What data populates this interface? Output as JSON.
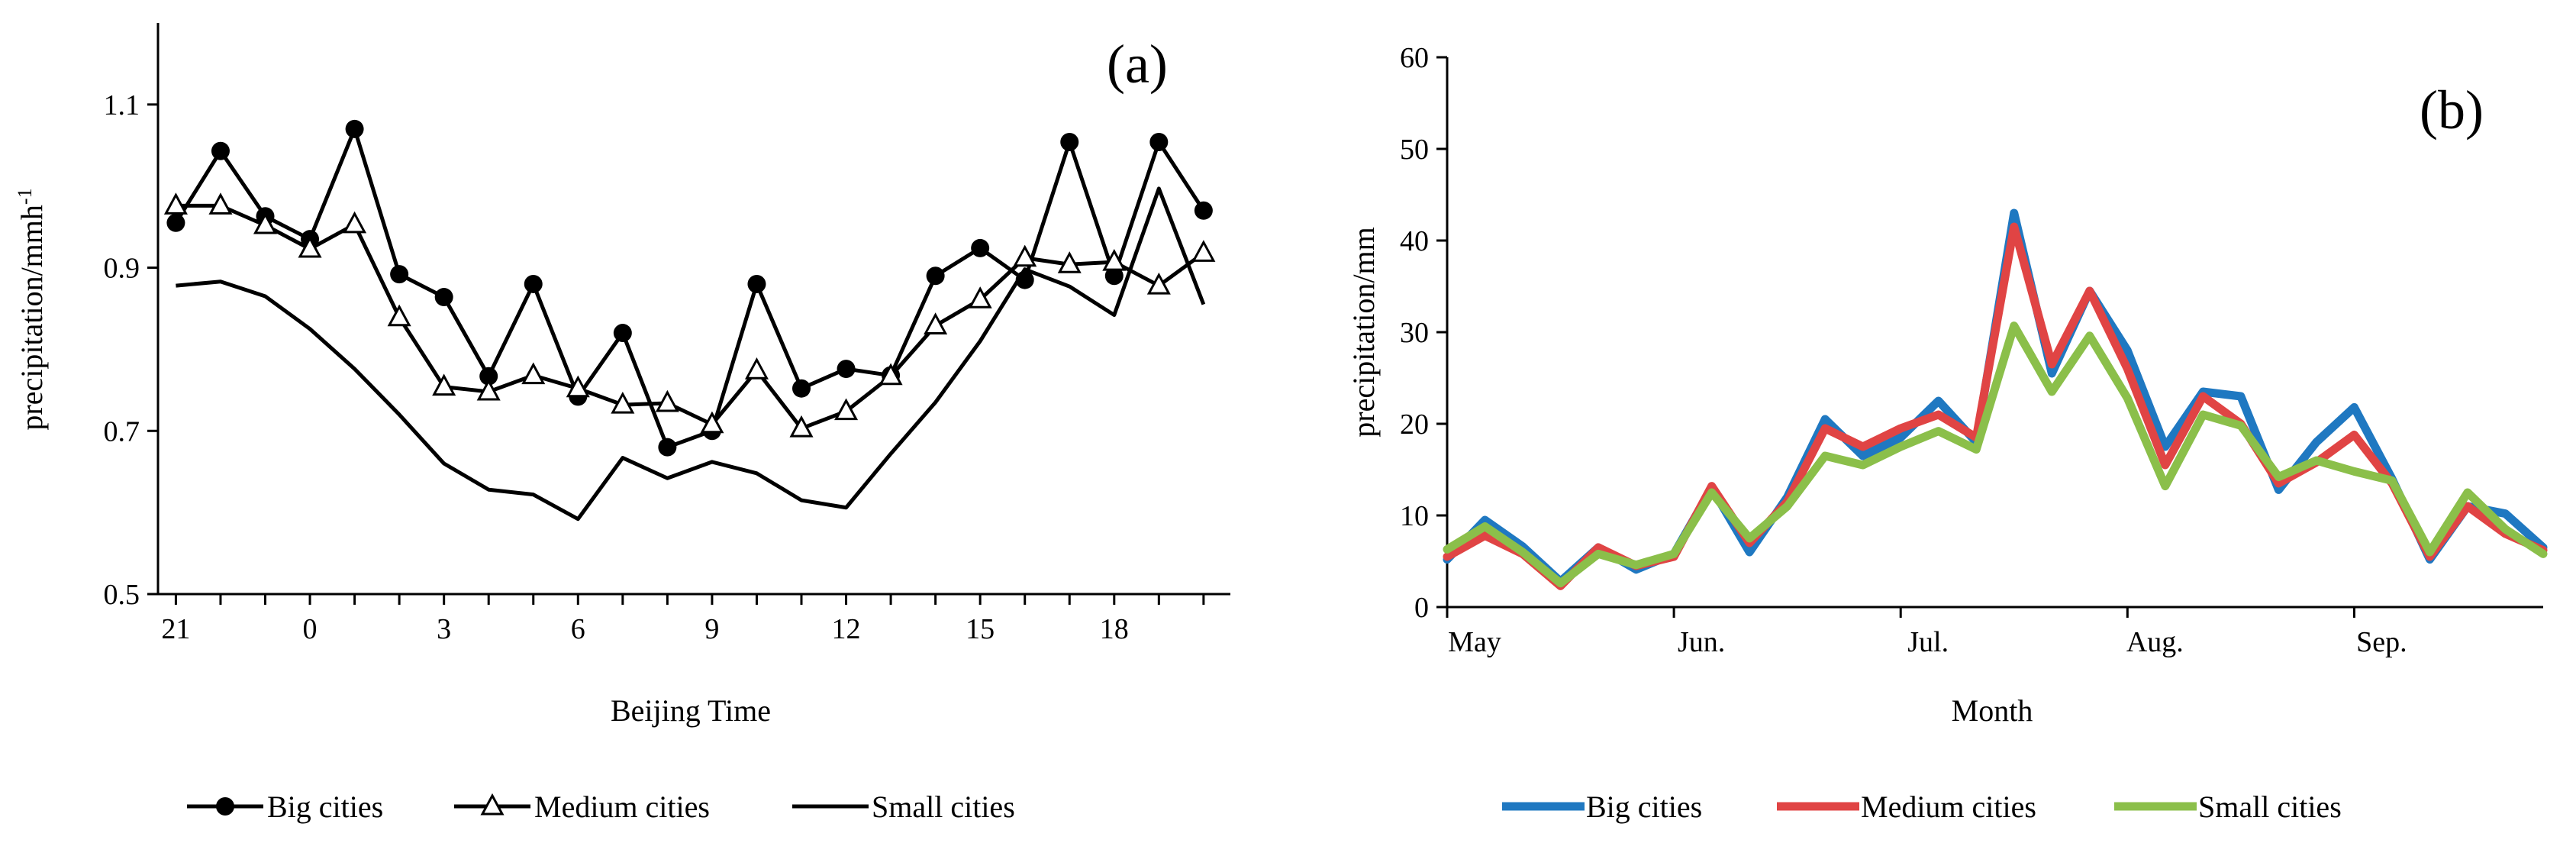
{
  "chart_data": [
    {
      "type": "line",
      "panel_label": "(a)",
      "xlabel": "Beijing  Time",
      "ylabel": "precipitation/mmh",
      "ylabel_sup": "-1",
      "ylim": [
        0.5,
        1.2
      ],
      "yticks": [
        0.5,
        0.7,
        0.9,
        1.1
      ],
      "ytick_labels": [
        "0.5",
        "0.7",
        "0.9",
        "1.1"
      ],
      "xticks": [
        21,
        24,
        27,
        30,
        33,
        36,
        39,
        42
      ],
      "xtick_labels": [
        "21",
        "0",
        "3",
        "6",
        "9",
        "12",
        "15",
        "18"
      ],
      "x": [
        21,
        22,
        23,
        24,
        25,
        26,
        27,
        28,
        29,
        30,
        31,
        32,
        33,
        34,
        35,
        36,
        37,
        38,
        39,
        40,
        41,
        42,
        43,
        44
      ],
      "x_note": "hours continuing past midnight (24 = 0 h, 42 = 18 h)",
      "legend_position": "bottom",
      "series": [
        {
          "name": "Big cities",
          "marker": "filled-circle",
          "color": "#000000",
          "values": [
            0.955,
            1.043,
            0.963,
            0.935,
            1.07,
            0.892,
            0.864,
            0.767,
            0.88,
            0.742,
            0.82,
            0.68,
            0.7,
            0.88,
            0.752,
            0.776,
            0.768,
            0.89,
            0.924,
            0.885,
            1.054,
            0.89,
            1.054,
            0.97
          ]
        },
        {
          "name": "Medium cities",
          "marker": "open-triangle",
          "color": "#000000",
          "values": [
            0.976,
            0.976,
            0.952,
            0.923,
            0.953,
            0.839,
            0.754,
            0.748,
            0.768,
            0.752,
            0.732,
            0.734,
            0.708,
            0.774,
            0.703,
            0.724,
            0.767,
            0.829,
            0.861,
            0.912,
            0.904,
            0.907,
            0.878,
            0.918
          ]
        },
        {
          "name": "Small cities",
          "marker": "none",
          "color": "#000000",
          "values": [
            0.878,
            0.883,
            0.865,
            0.825,
            0.776,
            0.72,
            0.66,
            0.628,
            0.622,
            0.592,
            0.667,
            0.642,
            0.662,
            0.648,
            0.615,
            0.606,
            0.672,
            0.735,
            0.81,
            0.898,
            0.877,
            0.842,
            0.997,
            0.855
          ]
        }
      ]
    },
    {
      "type": "line",
      "panel_label": "(b)",
      "xlabel": "Month",
      "ylabel": "precipitation/mm",
      "ylim": [
        0,
        60
      ],
      "yticks": [
        0,
        10,
        20,
        30,
        40,
        50,
        60
      ],
      "ytick_labels": [
        "0",
        "10",
        "20",
        "30",
        "40",
        "50",
        "60"
      ],
      "x_month_starts": [
        0,
        6,
        12,
        18,
        24
      ],
      "xtick_labels": [
        "May",
        "Jun.",
        "Jul.",
        "Aug.",
        "Sep."
      ],
      "x": [
        0,
        1,
        2,
        3,
        4,
        5,
        6,
        7,
        8,
        9,
        10,
        11,
        12,
        13,
        14,
        15,
        16,
        17,
        18,
        19,
        20,
        21,
        22,
        23,
        24,
        25,
        26,
        27,
        28,
        29
      ],
      "x_note": "roughly pentad steps, 6 per month",
      "legend_position": "bottom",
      "series": [
        {
          "name": "Big cities",
          "color": "#1f78c1",
          "values": [
            5.2,
            9.5,
            6.6,
            2.8,
            6.5,
            4.1,
            5.8,
            13.0,
            6.0,
            12.0,
            20.5,
            16.5,
            18.5,
            22.5,
            18.0,
            43.0,
            25.5,
            34.5,
            28.0,
            17.5,
            23.5,
            23.0,
            12.8,
            18.0,
            21.8,
            14.0,
            5.2,
            11.0,
            10.2,
            6.5
          ]
        },
        {
          "name": "Medium cities",
          "color": "#e04444",
          "values": [
            5.5,
            7.8,
            5.8,
            2.3,
            6.5,
            4.5,
            5.5,
            13.2,
            7.0,
            11.5,
            19.5,
            17.5,
            19.5,
            21.0,
            18.5,
            41.5,
            26.5,
            34.5,
            26.0,
            15.5,
            23.0,
            20.0,
            13.5,
            15.8,
            18.8,
            13.5,
            5.5,
            11.0,
            8.0,
            6.2
          ]
        },
        {
          "name": "Small cities",
          "color": "#8bbf4a",
          "values": [
            6.3,
            8.8,
            6.0,
            2.6,
            5.8,
            4.6,
            5.8,
            12.5,
            7.5,
            11.0,
            16.5,
            15.5,
            17.5,
            19.2,
            17.2,
            30.7,
            23.5,
            29.6,
            22.8,
            13.2,
            21.0,
            19.8,
            14.2,
            16.0,
            14.8,
            13.8,
            6.0,
            12.5,
            8.5,
            5.8
          ]
        }
      ]
    }
  ]
}
